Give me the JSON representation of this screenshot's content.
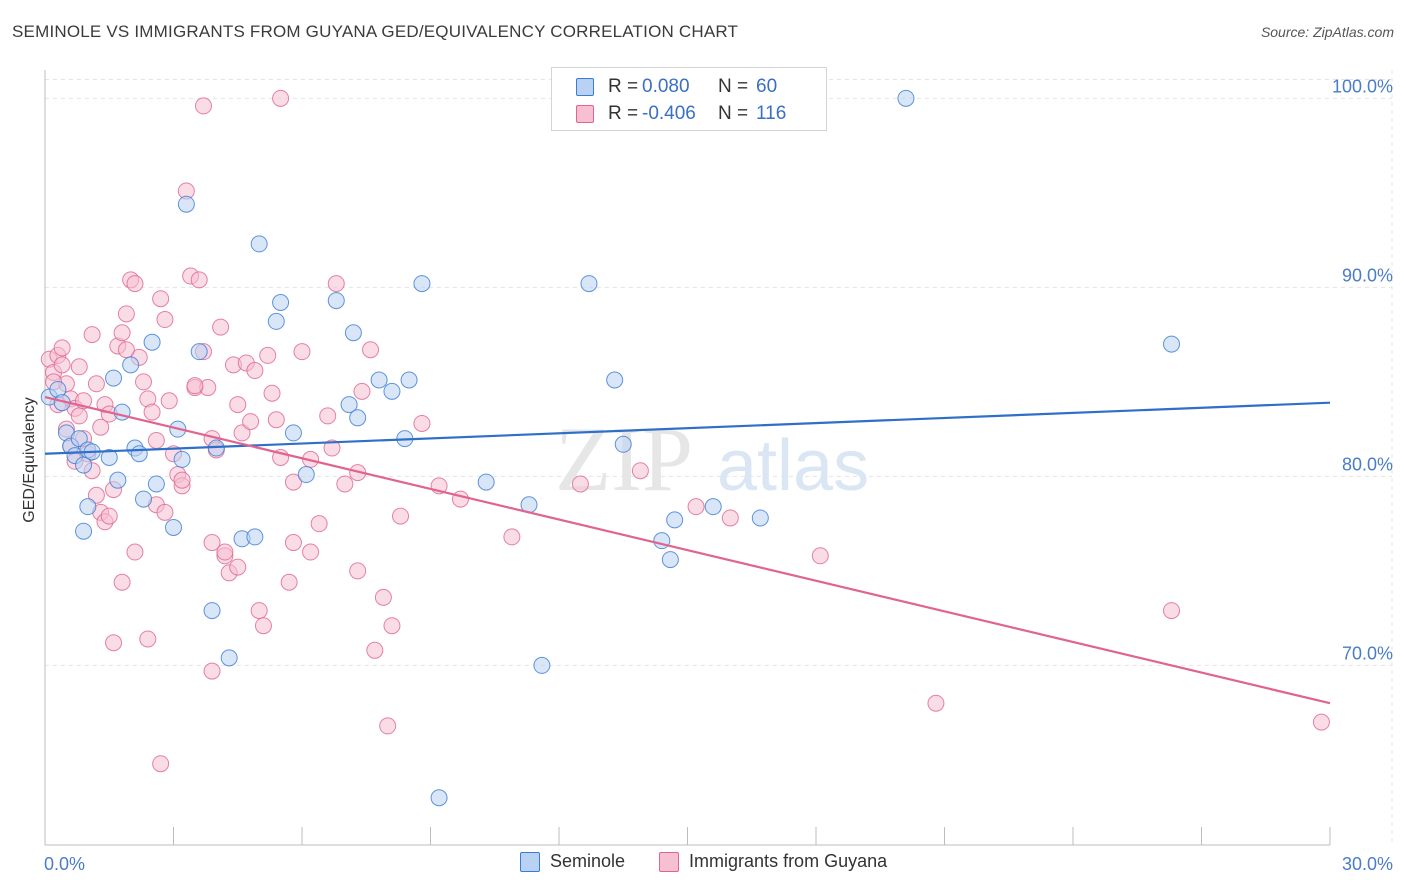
{
  "header": {
    "title": "SEMINOLE VS IMMIGRANTS FROM GUYANA GED/EQUIVALENCY CORRELATION CHART",
    "source": "Source: ZipAtlas.com"
  },
  "legend": {
    "rows": [
      {
        "r_label": "R =",
        "r_value": "0.080",
        "n_label": "N =",
        "n_value": "60"
      },
      {
        "r_label": "R =",
        "r_value": "-0.406",
        "n_label": "N =",
        "n_value": "116"
      }
    ],
    "bottom": [
      "Seminole",
      "Immigrants from Guyana"
    ]
  },
  "watermark": {
    "zip": "ZIP",
    "atlas": "atlas"
  },
  "colors": {
    "blue": "#3a7bd5",
    "blue_fill": "#b9d2f3",
    "pink": "#e0648f",
    "pink_fill": "#f6c0d2",
    "grid": "#e4e4e4",
    "axis_text": "#4a7cc8"
  },
  "chart_data": {
    "type": "scatter",
    "title": "SEMINOLE VS IMMIGRANTS FROM GUYANA GED/EQUIVALENCY CORRELATION CHART",
    "xlabel": "",
    "ylabel": "GED/Equivalency",
    "xlim": [
      0,
      30
    ],
    "ylim": [
      60.5,
      101.5
    ],
    "x_tick_labels": [
      "0.0%",
      "30.0%"
    ],
    "y_ticks": [
      70,
      80,
      90,
      100
    ],
    "y_tick_labels": [
      "70.0%",
      "80.0%",
      "90.0%",
      "100.0%"
    ],
    "grid": true,
    "legend_position": "top-center",
    "series": [
      {
        "name": "Seminole",
        "color": "#3a7bd5",
        "trend": {
          "x": [
            0,
            30
          ],
          "y": [
            81.2,
            83.9
          ]
        },
        "points": [
          [
            0.1,
            84.2
          ],
          [
            0.3,
            84.6
          ],
          [
            0.4,
            83.9
          ],
          [
            0.5,
            82.3
          ],
          [
            0.6,
            81.6
          ],
          [
            0.7,
            81.1
          ],
          [
            0.8,
            82.0
          ],
          [
            0.9,
            80.6
          ],
          [
            1.0,
            81.4
          ],
          [
            1.1,
            81.3
          ],
          [
            1.5,
            81.0
          ],
          [
            1.7,
            79.8
          ],
          [
            1.6,
            85.2
          ],
          [
            1.8,
            83.4
          ],
          [
            2.0,
            85.9
          ],
          [
            2.1,
            81.5
          ],
          [
            2.2,
            81.2
          ],
          [
            2.5,
            87.1
          ],
          [
            2.6,
            79.6
          ],
          [
            2.3,
            78.8
          ],
          [
            3.0,
            77.3
          ],
          [
            3.1,
            82.5
          ],
          [
            3.2,
            80.9
          ],
          [
            3.3,
            94.4
          ],
          [
            3.6,
            86.6
          ],
          [
            4.0,
            81.5
          ],
          [
            3.9,
            72.9
          ],
          [
            4.3,
            70.4
          ],
          [
            4.6,
            76.7
          ],
          [
            4.9,
            76.8
          ],
          [
            5.0,
            92.3
          ],
          [
            5.4,
            88.2
          ],
          [
            5.5,
            89.2
          ],
          [
            5.8,
            82.3
          ],
          [
            6.1,
            80.1
          ],
          [
            6.8,
            89.3
          ],
          [
            7.1,
            83.8
          ],
          [
            7.2,
            87.6
          ],
          [
            7.3,
            83.1
          ],
          [
            7.8,
            85.1
          ],
          [
            8.1,
            84.5
          ],
          [
            8.4,
            82.0
          ],
          [
            8.5,
            85.1
          ],
          [
            8.8,
            90.2
          ],
          [
            10.3,
            79.7
          ],
          [
            11.3,
            78.5
          ],
          [
            11.6,
            70.0
          ],
          [
            12.7,
            90.2
          ],
          [
            13.3,
            85.1
          ],
          [
            13.5,
            81.7
          ],
          [
            14.4,
            76.6
          ],
          [
            14.6,
            75.6
          ],
          [
            14.7,
            77.7
          ],
          [
            15.6,
            78.4
          ],
          [
            16.7,
            77.8
          ],
          [
            20.1,
            100.0
          ],
          [
            26.3,
            87.0
          ],
          [
            9.2,
            63.0
          ],
          [
            1.0,
            78.4
          ],
          [
            0.9,
            77.1
          ]
        ]
      },
      {
        "name": "Immigrants from Guyana",
        "color": "#e0648f",
        "trend": {
          "x": [
            0,
            30
          ],
          "y": [
            84.2,
            68.0
          ]
        },
        "points": [
          [
            0.1,
            86.2
          ],
          [
            0.2,
            85.5
          ],
          [
            0.3,
            86.4
          ],
          [
            0.4,
            85.9
          ],
          [
            0.5,
            84.9
          ],
          [
            0.6,
            84.1
          ],
          [
            0.3,
            83.8
          ],
          [
            0.7,
            83.6
          ],
          [
            0.8,
            83.2
          ],
          [
            0.5,
            82.5
          ],
          [
            0.9,
            82.0
          ],
          [
            0.6,
            81.6
          ],
          [
            0.7,
            80.8
          ],
          [
            1.0,
            81.2
          ],
          [
            1.1,
            80.3
          ],
          [
            1.2,
            79.0
          ],
          [
            1.3,
            78.1
          ],
          [
            1.4,
            77.6
          ],
          [
            1.5,
            77.9
          ],
          [
            1.6,
            79.3
          ],
          [
            1.7,
            86.9
          ],
          [
            1.8,
            87.6
          ],
          [
            1.9,
            88.6
          ],
          [
            2.0,
            90.4
          ],
          [
            2.1,
            90.2
          ],
          [
            2.2,
            86.3
          ],
          [
            2.3,
            85.0
          ],
          [
            2.4,
            84.1
          ],
          [
            2.5,
            83.4
          ],
          [
            2.6,
            81.9
          ],
          [
            2.7,
            89.4
          ],
          [
            2.8,
            88.3
          ],
          [
            2.9,
            84.0
          ],
          [
            3.0,
            81.2
          ],
          [
            3.1,
            80.1
          ],
          [
            3.2,
            79.5
          ],
          [
            3.3,
            95.1
          ],
          [
            3.4,
            90.6
          ],
          [
            3.5,
            84.7
          ],
          [
            3.6,
            90.4
          ],
          [
            3.7,
            86.6
          ],
          [
            3.8,
            84.7
          ],
          [
            3.9,
            82.0
          ],
          [
            4.0,
            81.4
          ],
          [
            4.1,
            87.9
          ],
          [
            4.2,
            75.8
          ],
          [
            4.3,
            74.9
          ],
          [
            4.4,
            85.9
          ],
          [
            4.5,
            83.8
          ],
          [
            4.6,
            82.3
          ],
          [
            4.7,
            86.0
          ],
          [
            4.8,
            82.9
          ],
          [
            4.9,
            85.6
          ],
          [
            5.0,
            72.9
          ],
          [
            5.1,
            72.1
          ],
          [
            5.2,
            86.4
          ],
          [
            5.3,
            84.4
          ],
          [
            5.4,
            83.0
          ],
          [
            5.5,
            81.0
          ],
          [
            5.7,
            74.4
          ],
          [
            5.8,
            79.7
          ],
          [
            6.0,
            86.6
          ],
          [
            6.2,
            80.9
          ],
          [
            6.4,
            77.5
          ],
          [
            6.6,
            83.2
          ],
          [
            6.8,
            90.2
          ],
          [
            7.0,
            79.6
          ],
          [
            7.3,
            75.0
          ],
          [
            7.4,
            84.5
          ],
          [
            7.6,
            86.7
          ],
          [
            7.9,
            73.6
          ],
          [
            8.1,
            72.1
          ],
          [
            8.3,
            77.9
          ],
          [
            7.7,
            70.8
          ],
          [
            8.0,
            66.8
          ],
          [
            3.7,
            99.6
          ],
          [
            5.5,
            100.0
          ],
          [
            2.7,
            64.8
          ],
          [
            3.9,
            69.7
          ],
          [
            2.4,
            71.4
          ],
          [
            1.6,
            71.2
          ],
          [
            1.8,
            74.4
          ],
          [
            2.1,
            76.0
          ],
          [
            1.3,
            82.6
          ],
          [
            0.8,
            85.8
          ],
          [
            1.1,
            87.5
          ],
          [
            1.4,
            83.8
          ],
          [
            0.4,
            86.8
          ],
          [
            0.2,
            85.0
          ],
          [
            0.9,
            84.0
          ],
          [
            1.2,
            84.9
          ],
          [
            1.5,
            83.3
          ],
          [
            1.9,
            86.7
          ],
          [
            2.6,
            78.5
          ],
          [
            2.8,
            78.1
          ],
          [
            3.2,
            79.8
          ],
          [
            3.5,
            84.8
          ],
          [
            4.2,
            76.0
          ],
          [
            4.5,
            75.2
          ],
          [
            3.9,
            76.5
          ],
          [
            6.2,
            76.0
          ],
          [
            5.8,
            76.5
          ],
          [
            6.7,
            81.5
          ],
          [
            7.3,
            80.2
          ],
          [
            8.8,
            82.8
          ],
          [
            9.2,
            79.5
          ],
          [
            9.7,
            78.8
          ],
          [
            12.5,
            79.6
          ],
          [
            13.9,
            80.3
          ],
          [
            16.0,
            77.8
          ],
          [
            18.1,
            75.8
          ],
          [
            20.8,
            68.0
          ],
          [
            26.3,
            72.9
          ],
          [
            29.8,
            67.0
          ],
          [
            15.2,
            78.4
          ],
          [
            10.9,
            76.8
          ]
        ]
      }
    ]
  }
}
